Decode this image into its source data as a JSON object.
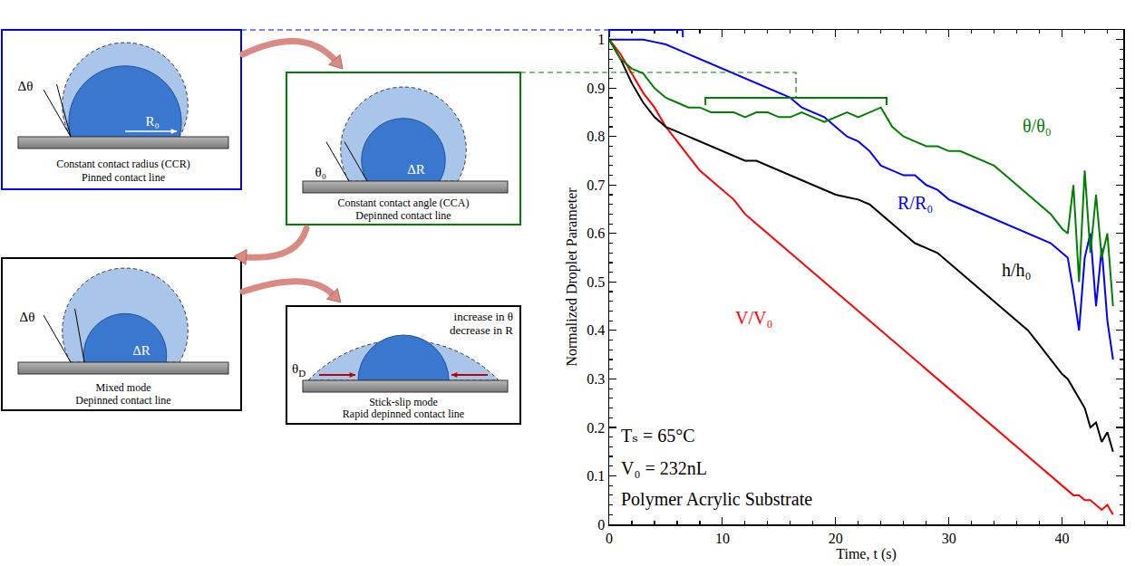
{
  "chart_data": {
    "type": "line",
    "xlabel": "Time, t (s)",
    "ylabel": "Normalized Droplet Parameter",
    "x": [
      0,
      1,
      2,
      3,
      4,
      5,
      6,
      7,
      8,
      9,
      10,
      11,
      12,
      13,
      14,
      15,
      16,
      17,
      18,
      19,
      20,
      21,
      22,
      23,
      24,
      25,
      26,
      27,
      28,
      29,
      30,
      31,
      32,
      33,
      34,
      35,
      36,
      37,
      38,
      39,
      40,
      40.5,
      41,
      41.5,
      42,
      42.5,
      43,
      43.5,
      44,
      44.5
    ],
    "series": [
      {
        "name": "V/V₀",
        "color": "#ff0000",
        "values": [
          1,
          0.97,
          0.93,
          0.89,
          0.86,
          0.82,
          0.79,
          0.76,
          0.73,
          0.71,
          0.69,
          0.67,
          0.64,
          0.62,
          0.6,
          0.58,
          0.56,
          0.54,
          0.52,
          0.5,
          0.48,
          0.46,
          0.44,
          0.42,
          0.4,
          0.38,
          0.36,
          0.34,
          0.32,
          0.3,
          0.28,
          0.26,
          0.24,
          0.22,
          0.2,
          0.18,
          0.16,
          0.14,
          0.12,
          0.1,
          0.08,
          0.07,
          0.06,
          0.06,
          0.05,
          0.05,
          0.04,
          0.03,
          0.04,
          0.02
        ]
      },
      {
        "name": "h/h₀",
        "color": "#000000",
        "values": [
          1,
          0.96,
          0.91,
          0.87,
          0.84,
          0.82,
          0.81,
          0.8,
          0.79,
          0.78,
          0.77,
          0.76,
          0.75,
          0.75,
          0.74,
          0.73,
          0.72,
          0.71,
          0.7,
          0.69,
          0.68,
          0.675,
          0.67,
          0.66,
          0.64,
          0.62,
          0.6,
          0.58,
          0.57,
          0.56,
          0.54,
          0.52,
          0.5,
          0.48,
          0.46,
          0.44,
          0.42,
          0.4,
          0.37,
          0.34,
          0.31,
          0.3,
          0.28,
          0.26,
          0.24,
          0.2,
          0.21,
          0.17,
          0.19,
          0.15
        ]
      },
      {
        "name": "R/R₀",
        "color": "#0000ff",
        "values": [
          1,
          1,
          1,
          1,
          0.995,
          0.99,
          0.98,
          0.97,
          0.96,
          0.95,
          0.94,
          0.93,
          0.92,
          0.91,
          0.9,
          0.89,
          0.88,
          0.86,
          0.85,
          0.84,
          0.82,
          0.8,
          0.79,
          0.77,
          0.74,
          0.73,
          0.72,
          0.72,
          0.7,
          0.69,
          0.67,
          0.66,
          0.65,
          0.64,
          0.63,
          0.62,
          0.61,
          0.6,
          0.59,
          0.58,
          0.56,
          0.55,
          0.48,
          0.4,
          0.55,
          0.6,
          0.45,
          0.57,
          0.42,
          0.34
        ]
      },
      {
        "name": "θ/θ₀",
        "color": "#008000",
        "values": [
          1,
          0.96,
          0.94,
          0.93,
          0.9,
          0.88,
          0.87,
          0.86,
          0.86,
          0.85,
          0.85,
          0.85,
          0.84,
          0.85,
          0.85,
          0.84,
          0.84,
          0.85,
          0.84,
          0.83,
          0.84,
          0.85,
          0.84,
          0.85,
          0.86,
          0.82,
          0.8,
          0.79,
          0.78,
          0.78,
          0.77,
          0.77,
          0.76,
          0.75,
          0.74,
          0.72,
          0.7,
          0.68,
          0.66,
          0.64,
          0.61,
          0.6,
          0.7,
          0.5,
          0.73,
          0.56,
          0.68,
          0.55,
          0.6,
          0.45
        ]
      }
    ],
    "xlim": [
      0,
      45.4
    ],
    "xticks": [
      0,
      10,
      20,
      30,
      40
    ],
    "ylim": [
      0,
      1.02
    ],
    "yticks": [
      0,
      0.1,
      0.2,
      0.3,
      0.4,
      0.5,
      0.6,
      0.7,
      0.8,
      0.9,
      1
    ],
    "grid": false,
    "annotations": [
      "Tₛ = 65°C",
      "V₀ = 232nL",
      "Polymer Acrylic Substrate"
    ],
    "regions": [
      {
        "xlim": [
          0,
          6.5
        ],
        "y": 1.02,
        "color": "#0000ff"
      },
      {
        "xlim": [
          8.5,
          24.5
        ],
        "y": 0.88,
        "color": "#008000"
      }
    ]
  },
  "diagram": {
    "panels": [
      {
        "caption": [
          "Constant contact radius (CCR)",
          "Pinned contact line"
        ],
        "labels": [
          "Δθ",
          "R₀"
        ],
        "color": "#0000ff"
      },
      {
        "caption": [
          "Constant contact angle (CCA)",
          "Depinned contact line"
        ],
        "labels": [
          "θ₀",
          "ΔR"
        ],
        "color": "#008000"
      },
      {
        "caption": [
          "Mixed mode",
          "Depinned contact line"
        ],
        "labels": [
          "Δθ",
          "ΔR"
        ],
        "color": "#000000"
      },
      {
        "caption": [
          "Stick-slip mode",
          "Rapid depinned contact line"
        ],
        "labels": [
          {
            "text": "θ",
            "sub": "D"
          }
        ],
        "notes": [
          "increase in θ",
          "decrease in R"
        ],
        "color": "#000000"
      }
    ]
  }
}
